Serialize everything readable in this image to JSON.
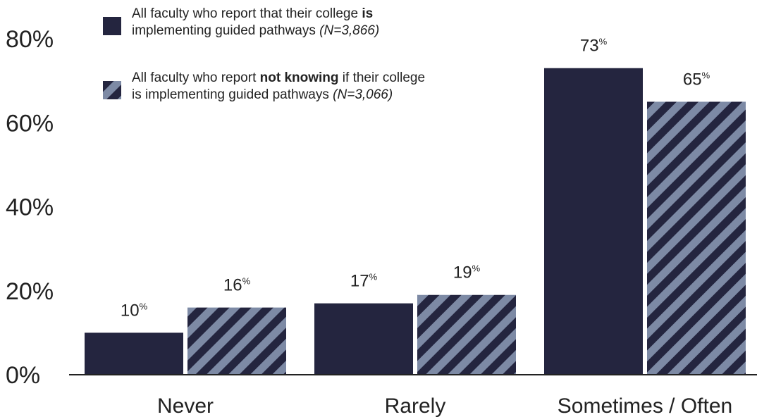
{
  "colors": {
    "solid": "#24253f",
    "stripe_light": "#7d8aa5",
    "axis": "#222222"
  },
  "legend": {
    "solid_line1_pre": "All faculty who report that their college ",
    "solid_line1_bold": "is",
    "solid_line2": "implementing guided pathways ",
    "solid_n": "(N=3,866)",
    "striped_line1_pre": "All faculty who report ",
    "striped_line1_bold": "not knowing",
    "striped_line1_post": " if their college",
    "striped_line2": "is implementing guided pathways ",
    "striped_n": "(N=3,066)"
  },
  "chart_data": {
    "type": "bar",
    "categories": [
      "Never",
      "Rarely",
      "Sometimes / Often"
    ],
    "series": [
      {
        "name": "All faculty who report that their college is implementing guided pathways (N=3,866)",
        "style": "solid",
        "values": [
          10,
          17,
          73
        ]
      },
      {
        "name": "All faculty who report not knowing if their college is implementing guided pathways (N=3,066)",
        "style": "striped",
        "values": [
          16,
          19,
          65
        ]
      }
    ],
    "ylim": [
      0,
      80
    ],
    "yticks": [
      "0%",
      "20%",
      "40%",
      "60%",
      "80%"
    ],
    "value_suffix": "%",
    "grid": false,
    "legend_position": "top-left"
  }
}
